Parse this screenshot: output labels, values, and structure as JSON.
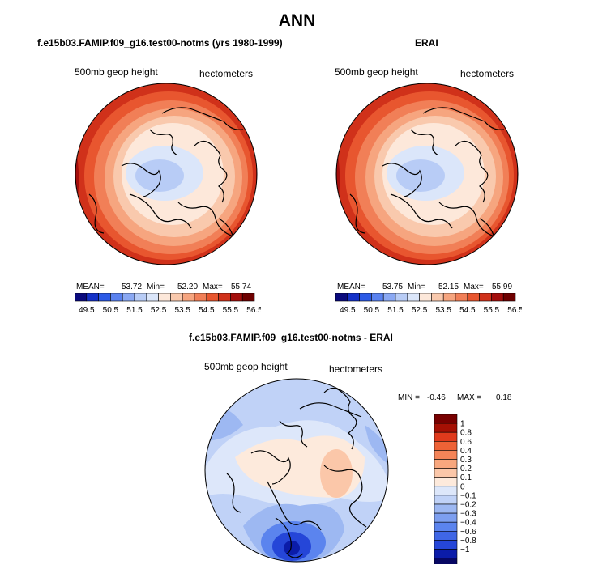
{
  "page_title": "ANN",
  "colors": {
    "land_outline": "#000000",
    "abs_palette": [
      "#0a0a7d",
      "#1431c8",
      "#2c5ae6",
      "#5a82f0",
      "#8aa8f3",
      "#b8ccf6",
      "#dbe6fa",
      "#fde8da",
      "#f9c9ad",
      "#f6a57f",
      "#f17f57",
      "#e8562f",
      "#d0311a",
      "#a40e0c",
      "#6e0000"
    ],
    "diff_palette": {
      "pos": [
        "#fdeadc",
        "#fbc7a9",
        "#f8a77e",
        "#f48458",
        "#ee6236",
        "#e03a1c",
        "#a51004",
        "#780000"
      ],
      "neg": [
        "#dde7fa",
        "#c0d2f7",
        "#9db8f2",
        "#7d9ff0",
        "#5b84ee",
        "#3f66e6",
        "#2546d8",
        "#0b1ca9",
        "#070763"
      ]
    }
  },
  "chart_data": [
    {
      "type": "heatmap",
      "projection": "polar-stereographic-north",
      "title": "f.e15b03.FAMIP.f09_g16.test00-notms (yrs 1980-1999)",
      "variable": "500mb geop height",
      "units": "hectometers",
      "stats": {
        "mean_label": "MEAN=",
        "mean": "53.72",
        "min_label": "Min=",
        "min": "52.20",
        "max_label": "Max=",
        "max": "55.74"
      },
      "colorbar": {
        "levels": [
          "49.5",
          "50.5",
          "51.5",
          "52.5",
          "53.5",
          "54.5",
          "55.5",
          "56.5"
        ],
        "n_bins": 15
      }
    },
    {
      "type": "heatmap",
      "projection": "polar-stereographic-north",
      "title": "ERAI",
      "variable": "500mb geop height",
      "units": "hectometers",
      "stats": {
        "mean_label": "MEAN=",
        "mean": "53.75",
        "min_label": "Min=",
        "min": "52.15",
        "max_label": "Max=",
        "max": "55.99"
      },
      "colorbar": {
        "levels": [
          "49.5",
          "50.5",
          "51.5",
          "52.5",
          "53.5",
          "54.5",
          "55.5",
          "56.5"
        ],
        "n_bins": 15
      }
    },
    {
      "type": "heatmap",
      "projection": "polar-stereographic-north",
      "title": "f.e15b03.FAMIP.f09_g16.test00-notms - ERAI",
      "variable": "500mb geop height",
      "units": "hectometers",
      "stats": {
        "min_label": "MIN =",
        "min": "-0.46",
        "max_label": "MAX =",
        "max": "0.18"
      },
      "colorbar": {
        "levels": [
          "1",
          "0.8",
          "0.6",
          "0.4",
          "0.3",
          "0.2",
          "0.1",
          "0",
          "−0.1",
          "−0.2",
          "−0.3",
          "−0.4",
          "−0.6",
          "−0.8",
          "−1"
        ]
      }
    }
  ]
}
